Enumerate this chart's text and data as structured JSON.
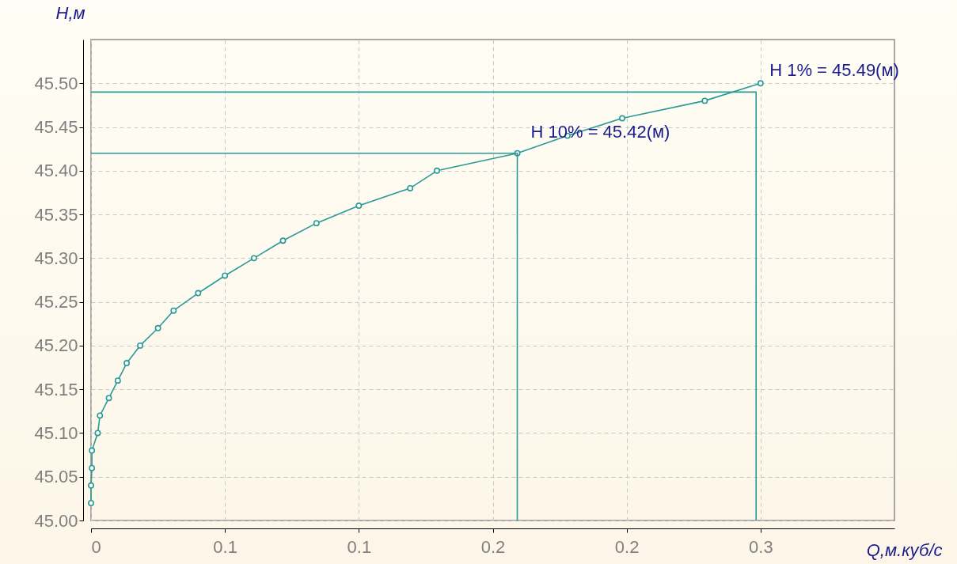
{
  "chart_data": {
    "type": "line",
    "xlabel": "Q,м.куб/с",
    "ylabel": "H,м",
    "xlim": [
      0,
      0.36
    ],
    "ylim": [
      45,
      45.55
    ],
    "xticks": [
      0,
      {
        "value": 0.06,
        "label": "0.1"
      },
      {
        "value": 0.12,
        "label": "0.1"
      },
      {
        "value": 0.18,
        "label": "0.2"
      },
      {
        "value": 0.24,
        "label": "0.2"
      },
      0.3
    ],
    "yticks": [
      {
        "value": 45,
        "label": "45.00"
      },
      {
        "value": 45.05,
        "label": "45.05"
      },
      {
        "value": 45.1,
        "label": "45.10"
      },
      {
        "value": 45.15,
        "label": "45.15"
      },
      {
        "value": 45.2,
        "label": "45.20"
      },
      {
        "value": 45.25,
        "label": "45.25"
      },
      {
        "value": 45.3,
        "label": "45.30"
      },
      {
        "value": 45.35,
        "label": "45.35"
      },
      {
        "value": 45.4,
        "label": "45.40"
      },
      {
        "value": 45.45,
        "label": "45.45"
      },
      {
        "value": 45.5,
        "label": "45.50"
      }
    ],
    "grid": true,
    "marker": "circle",
    "line_style": "solid",
    "series": [
      {
        "color": "#2a9a96",
        "x": [
          0,
          0,
          0.0004,
          0.0004,
          0.003,
          0.004,
          0.008,
          0.012,
          0.016,
          0.022,
          0.03,
          0.037,
          0.048,
          0.06,
          0.073,
          0.086,
          0.101,
          0.12,
          0.143,
          0.155,
          0.191,
          0.2135,
          0.238,
          0.275,
          0.3
        ],
        "values": [
          45.02,
          45.04,
          45.06,
          45.08,
          45.1,
          45.12,
          45.14,
          45.16,
          45.18,
          45.2,
          45.22,
          45.24,
          45.26,
          45.28,
          45.3,
          45.32,
          45.34,
          45.36,
          45.38,
          45.4,
          45.42,
          45.44,
          45.46,
          45.48,
          45.5
        ]
      },
      {
        "color": "#2a9a96",
        "marker": "none",
        "x": [
          0,
          0.191,
          0.191
        ],
        "values": [
          45.42,
          45.42,
          45
        ]
      },
      {
        "color": "#2a9a96",
        "marker": "none",
        "x": [
          0,
          0.298,
          0.298
        ],
        "values": [
          45.49,
          45.49,
          45
        ]
      }
    ],
    "annotations": [
      {
        "text": "H 10% = 45.42(м)",
        "x": 0.191,
        "y": 45.42
      },
      {
        "text": "H 1% = 45.49(м)",
        "x": 0.298,
        "y": 45.49
      }
    ]
  }
}
